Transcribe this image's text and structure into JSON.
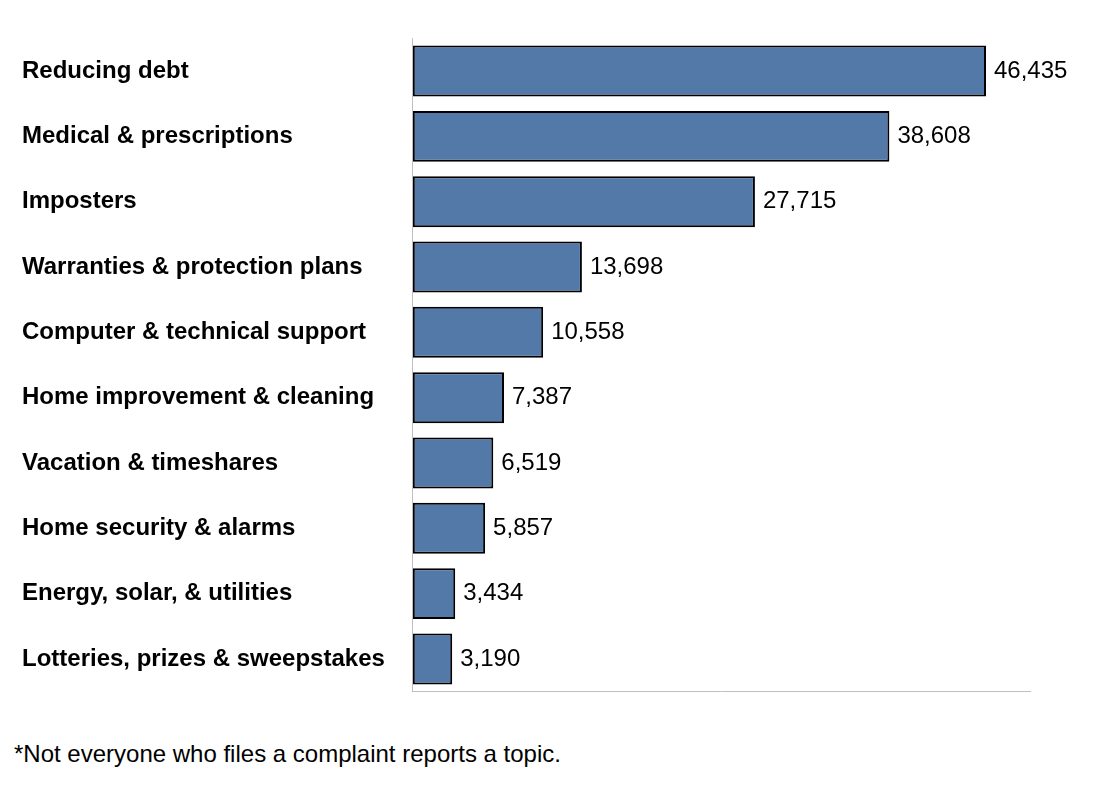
{
  "chart_data": {
    "type": "bar",
    "orientation": "horizontal",
    "categories": [
      "Reducing debt",
      "Medical & prescriptions",
      "Imposters",
      "Warranties & protection plans",
      "Computer & technical support",
      "Home improvement & cleaning",
      "Vacation & timeshares",
      "Home security & alarms",
      "Energy, solar, & utilities",
      "Lotteries, prizes & sweepstakes"
    ],
    "values": [
      46435,
      38608,
      27715,
      13698,
      10558,
      7387,
      6519,
      5857,
      3434,
      3190
    ],
    "value_labels": [
      "46,435",
      "38,608",
      "27,715",
      "13,698",
      "10,558",
      "7,387",
      "6,519",
      "5,857",
      "3,434",
      "3,190"
    ],
    "color": "#5279a7",
    "xlim": [
      0,
      50000
    ],
    "grid": false,
    "data_labels": true,
    "tick_labels": "y",
    "annotations": [
      "*Not everyone who files a complaint reports a topic."
    ]
  }
}
